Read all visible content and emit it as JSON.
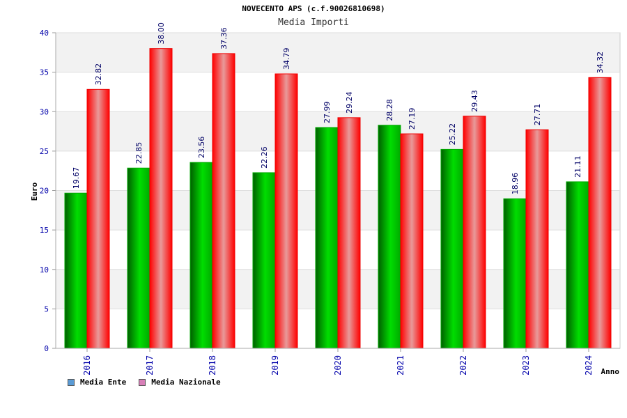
{
  "chart_data": {
    "type": "bar",
    "title": "NOVECENTO APS (c.f.90026810698)",
    "subtitle": "Media Importi",
    "xlabel": "Anno",
    "ylabel": "Euro",
    "ylim": [
      0,
      40
    ],
    "yticks": [
      0,
      5,
      10,
      15,
      20,
      25,
      30,
      35,
      40
    ],
    "categories": [
      "2016",
      "2017",
      "2018",
      "2019",
      "2020",
      "2021",
      "2022",
      "2023",
      "2024"
    ],
    "series": [
      {
        "name": "Media Ente",
        "values": [
          19.67,
          22.85,
          23.56,
          22.26,
          27.99,
          28.28,
          25.22,
          18.96,
          21.11
        ],
        "labels": [
          "19.67",
          "22.85",
          "23.56",
          "22.26",
          "27.99",
          "28.28",
          "25.22",
          "18.96",
          "21.11"
        ],
        "color": "#00aa00",
        "legend_color": "#5b9bd5"
      },
      {
        "name": "Media Nazionale",
        "values": [
          32.82,
          38.0,
          37.36,
          34.79,
          29.24,
          27.19,
          29.43,
          27.71,
          34.32
        ],
        "labels": [
          "32.82",
          "38.00",
          "37.36",
          "34.79",
          "29.24",
          "27.19",
          "29.43",
          "27.71",
          "34.32"
        ],
        "color": "#ff0000",
        "legend_color": "#d87fb8"
      }
    ],
    "grid": true,
    "legend_position": "bottom-left"
  }
}
